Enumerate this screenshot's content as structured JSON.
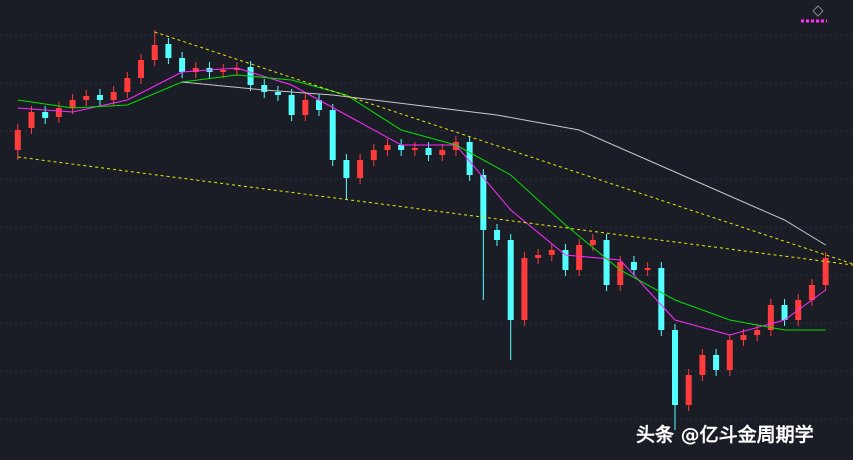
{
  "chart_data": {
    "type": "candlestick",
    "watermark": "头条 @亿斗金周期学",
    "xlim": [
      -1.3,
      61
    ],
    "ylim": [
      0,
      460
    ],
    "yticks": [
      41,
      89,
      137,
      185,
      233,
      281,
      329,
      377,
      425
    ],
    "grid": true,
    "up_color": "#ff3b3b",
    "down_color": "#54ffff",
    "open": [
      310,
      332,
      348,
      343,
      352,
      360,
      365,
      360,
      368,
      382,
      400,
      416,
      402,
      388,
      392,
      388,
      390,
      393,
      375,
      368,
      365,
      345,
      360,
      350,
      300,
      282,
      300,
      310,
      315,
      310,
      312,
      305,
      310,
      318,
      285,
      230,
      220,
      140,
      202,
      205,
      210,
      190,
      215,
      220,
      175,
      198,
      190,
      192,
      130,
      55,
      85,
      105,
      90,
      120,
      125,
      130,
      155,
      140,
      160,
      175
    ],
    "high": [
      336,
      354,
      354,
      358,
      366,
      370,
      371,
      374,
      388,
      406,
      430,
      422,
      408,
      398,
      398,
      396,
      398,
      399,
      381,
      374,
      371,
      366,
      366,
      356,
      306,
      306,
      316,
      321,
      321,
      318,
      318,
      316,
      324,
      324,
      291,
      236,
      226,
      208,
      211,
      216,
      216,
      221,
      226,
      226,
      204,
      204,
      198,
      198,
      136,
      91,
      111,
      111,
      126,
      131,
      136,
      161,
      161,
      166,
      181,
      208
    ],
    "low": [
      300,
      326,
      336,
      337,
      346,
      354,
      354,
      354,
      362,
      376,
      394,
      396,
      382,
      382,
      382,
      382,
      384,
      369,
      362,
      359,
      339,
      339,
      344,
      294,
      260,
      276,
      294,
      304,
      304,
      304,
      299,
      299,
      304,
      279,
      160,
      214,
      100,
      134,
      196,
      199,
      184,
      184,
      209,
      169,
      169,
      184,
      184,
      124,
      30,
      49,
      79,
      84,
      84,
      114,
      119,
      124,
      134,
      134,
      154,
      169
    ],
    "close": [
      330,
      348,
      342,
      352,
      360,
      364,
      360,
      368,
      382,
      400,
      415,
      402,
      388,
      392,
      388,
      390,
      392,
      375,
      368,
      365,
      345,
      360,
      350,
      300,
      282,
      300,
      310,
      315,
      310,
      312,
      305,
      310,
      318,
      285,
      230,
      220,
      140,
      202,
      205,
      210,
      190,
      215,
      220,
      175,
      198,
      190,
      192,
      130,
      55,
      85,
      105,
      90,
      120,
      125,
      130,
      155,
      140,
      160,
      175,
      202
    ],
    "series": [
      {
        "color": "#ff2bff",
        "x": [
          0,
          4,
          8,
          12,
          16,
          20,
          24,
          28,
          32,
          36,
          40,
          44,
          48,
          52,
          56,
          59
        ],
        "values": [
          352,
          348,
          360,
          388,
          392,
          375,
          345,
          315,
          315,
          250,
          205,
          200,
          140,
          125,
          140,
          170
        ]
      },
      {
        "color": "#00e000",
        "x": [
          0,
          4,
          8,
          12,
          16,
          20,
          24,
          28,
          32,
          36,
          40,
          44,
          48,
          52,
          56,
          59
        ],
        "values": [
          360,
          352,
          355,
          378,
          385,
          380,
          365,
          330,
          315,
          285,
          235,
          190,
          160,
          140,
          130,
          130
        ]
      },
      {
        "color": "#c8c8c8",
        "x": [
          12,
          18,
          23,
          29,
          35,
          41,
          46,
          51,
          56,
          59
        ],
        "values": [
          378,
          370,
          365,
          355,
          345,
          330,
          300,
          270,
          240,
          215
        ]
      },
      {
        "color": "#e8e800",
        "dashed": true,
        "x": [
          10,
          61
        ],
        "values": [
          428,
          196
        ]
      },
      {
        "color": "#e8e800",
        "dashed": true,
        "x": [
          0,
          61
        ],
        "values": [
          303,
          195
        ]
      }
    ]
  }
}
